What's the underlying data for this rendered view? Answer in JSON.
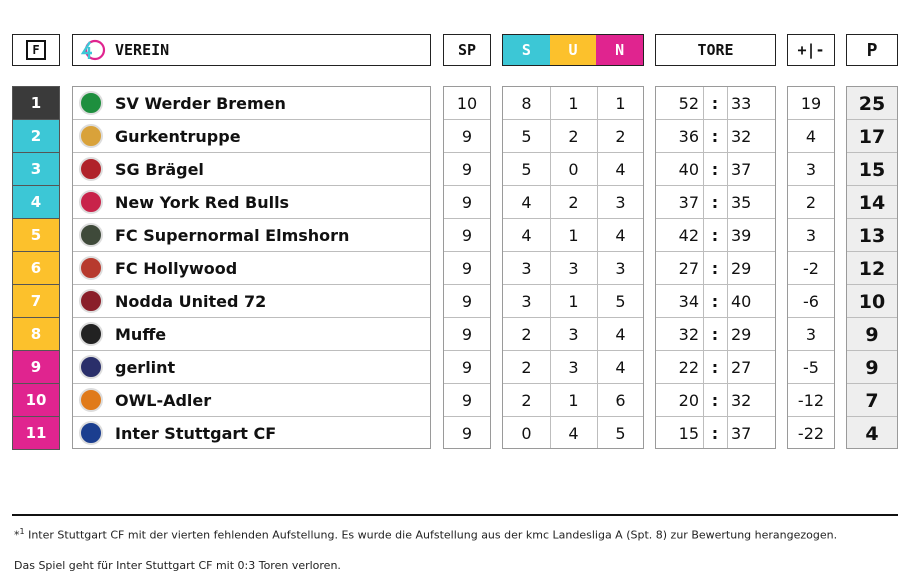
{
  "header": {
    "form_label": "F",
    "club_label": "VEREIN",
    "games_label": "SP",
    "wins_label": "S",
    "draws_label": "U",
    "losses_label": "N",
    "goals_label": "TORE",
    "diff_label": "+|-",
    "points_label": "P",
    "logo_text": "40"
  },
  "colors": {
    "rank_1": "#3a3a3a",
    "rank_cyan": "#3cc7d6",
    "rank_yellow": "#fcc12c",
    "rank_magenta": "#e0248f",
    "points_bg": "#eeeeee"
  },
  "rows": [
    {
      "rank": "1",
      "name": "SV Werder Bremen",
      "sp": "10",
      "s": "8",
      "u": "1",
      "n": "1",
      "gf": "52",
      "ga": "33",
      "diff": "19",
      "pts": "25",
      "zone": "rank_1",
      "logo": "werder-logo",
      "logo_color": "#1e8f3e"
    },
    {
      "rank": "2",
      "name": "Gurkentruppe",
      "sp": "9",
      "s": "5",
      "u": "2",
      "n": "2",
      "gf": "36",
      "ga": "32",
      "diff": "4",
      "pts": "17",
      "zone": "rank_cyan",
      "logo": "gurkentruppe-logo",
      "logo_color": "#d9a23a"
    },
    {
      "rank": "3",
      "name": "SG Brägel",
      "sp": "9",
      "s": "5",
      "u": "0",
      "n": "4",
      "gf": "40",
      "ga": "37",
      "diff": "3",
      "pts": "15",
      "zone": "rank_cyan",
      "logo": "sg-bragel-logo",
      "logo_color": "#b0222a"
    },
    {
      "rank": "4",
      "name": "New York Red Bulls",
      "sp": "9",
      "s": "4",
      "u": "2",
      "n": "3",
      "gf": "37",
      "ga": "35",
      "diff": "2",
      "pts": "14",
      "zone": "rank_cyan",
      "logo": "red-bulls-logo",
      "logo_color": "#c8234a"
    },
    {
      "rank": "5",
      "name": "FC Supernormal Elmshorn",
      "sp": "9",
      "s": "4",
      "u": "1",
      "n": "4",
      "gf": "42",
      "ga": "39",
      "diff": "3",
      "pts": "13",
      "zone": "rank_yellow",
      "logo": "elmshorn-logo",
      "logo_color": "#3f4a3a"
    },
    {
      "rank": "6",
      "name": "FC Hollywood",
      "sp": "9",
      "s": "3",
      "u": "3",
      "n": "3",
      "gf": "27",
      "ga": "29",
      "diff": "-2",
      "pts": "12",
      "zone": "rank_yellow",
      "logo": "hollywood-logo",
      "logo_color": "#b73a2e"
    },
    {
      "rank": "7",
      "name": "Nodda United 72",
      "sp": "9",
      "s": "3",
      "u": "1",
      "n": "5",
      "gf": "34",
      "ga": "40",
      "diff": "-6",
      "pts": "10",
      "zone": "rank_yellow",
      "logo": "nodda-logo",
      "logo_color": "#8a1f2a"
    },
    {
      "rank": "8",
      "name": "Muffe",
      "sp": "9",
      "s": "2",
      "u": "3",
      "n": "4",
      "gf": "32",
      "ga": "29",
      "diff": "3",
      "pts": "9",
      "zone": "rank_yellow",
      "logo": "muffe-logo",
      "logo_color": "#222222"
    },
    {
      "rank": "9",
      "name": "gerlint",
      "sp": "9",
      "s": "2",
      "u": "3",
      "n": "4",
      "gf": "22",
      "ga": "27",
      "diff": "-5",
      "pts": "9",
      "zone": "rank_magenta",
      "logo": "gerlint-logo",
      "logo_color": "#2a2f6a"
    },
    {
      "rank": "10",
      "name": "OWL-Adler",
      "sp": "9",
      "s": "2",
      "u": "1",
      "n": "6",
      "gf": "20",
      "ga": "32",
      "diff": "-12",
      "pts": "7",
      "zone": "rank_magenta",
      "logo": "owl-adler-logo",
      "logo_color": "#e07a1a"
    },
    {
      "rank": "11",
      "name": "Inter Stuttgart CF",
      "sp": "9",
      "s": "0",
      "u": "4",
      "n": "5",
      "gf": "15",
      "ga": "37",
      "diff": "-22",
      "pts": "4",
      "zone": "rank_magenta",
      "logo": "inter-stuttgart-logo",
      "logo_color": "#1b3e8f"
    }
  ],
  "goal_separator": ":",
  "footnote": {
    "marker": "*",
    "marker_sup": "1",
    "line1": " Inter Stuttgart CF mit der vierten fehlenden Aufstellung. Es wurde die Aufstellung aus der kmc Landesliga A (Spt. 8) zur Bewertung herangezogen.",
    "line2": "Das Spiel geht für Inter Stuttgart CF mit 0:3 Toren verloren."
  }
}
